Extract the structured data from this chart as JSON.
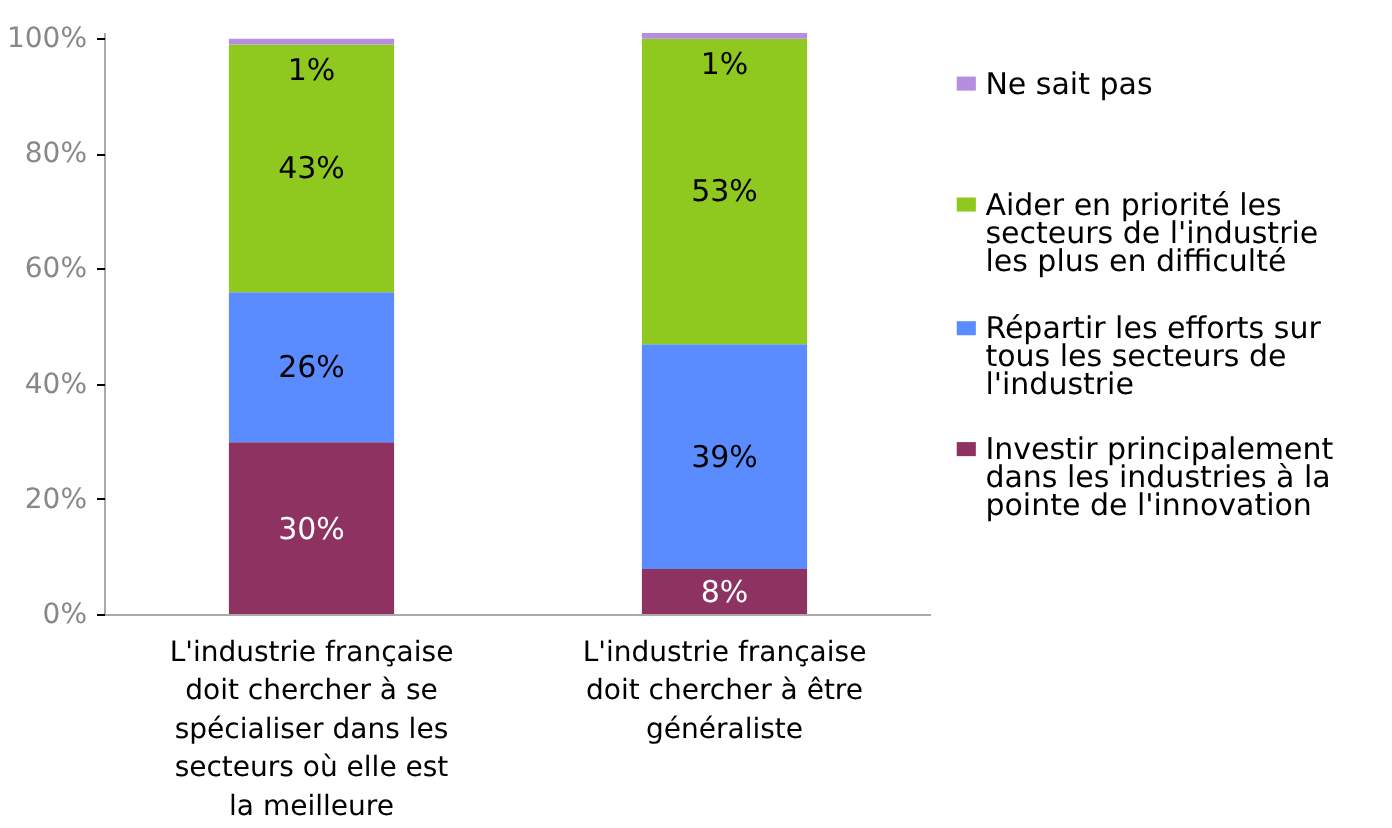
{
  "chart_data": {
    "type": "bar",
    "stacked": true,
    "categories": [
      "L'industrie française doit chercher à se spécialiser dans les secteurs où elle est la meilleure",
      "L'industrie française doit chercher à être généraliste"
    ],
    "series": [
      {
        "name": "Investir principalement dans les industries à la pointe de l'innovation",
        "color": "#8e3262",
        "values": [
          30,
          8
        ],
        "value_labels": [
          "30%",
          "8%"
        ]
      },
      {
        "name": "Répartir les efforts sur tous les secteurs de l'industrie",
        "color": "#5a8cff",
        "values": [
          26,
          39
        ],
        "value_labels": [
          "26%",
          "39%"
        ]
      },
      {
        "name": "Aider en priorité les secteurs de l'industrie les plus en difficulté",
        "color": "#8fc81e",
        "values": [
          43,
          53
        ],
        "value_labels": [
          "43%",
          "53%"
        ]
      },
      {
        "name": "Ne sait pas",
        "color": "#b68de0",
        "values": [
          1,
          1
        ],
        "value_labels": [
          "1%",
          "1%"
        ]
      }
    ],
    "ylim": [
      0,
      101
    ],
    "yticks": [
      {
        "value": 0,
        "label": "0%"
      },
      {
        "value": 20,
        "label": "20%"
      },
      {
        "value": 40,
        "label": "40%"
      },
      {
        "value": 60,
        "label": "60%"
      },
      {
        "value": 80,
        "label": "80%"
      },
      {
        "value": 100,
        "label": "100%"
      }
    ],
    "grid": false,
    "legend": "right"
  }
}
